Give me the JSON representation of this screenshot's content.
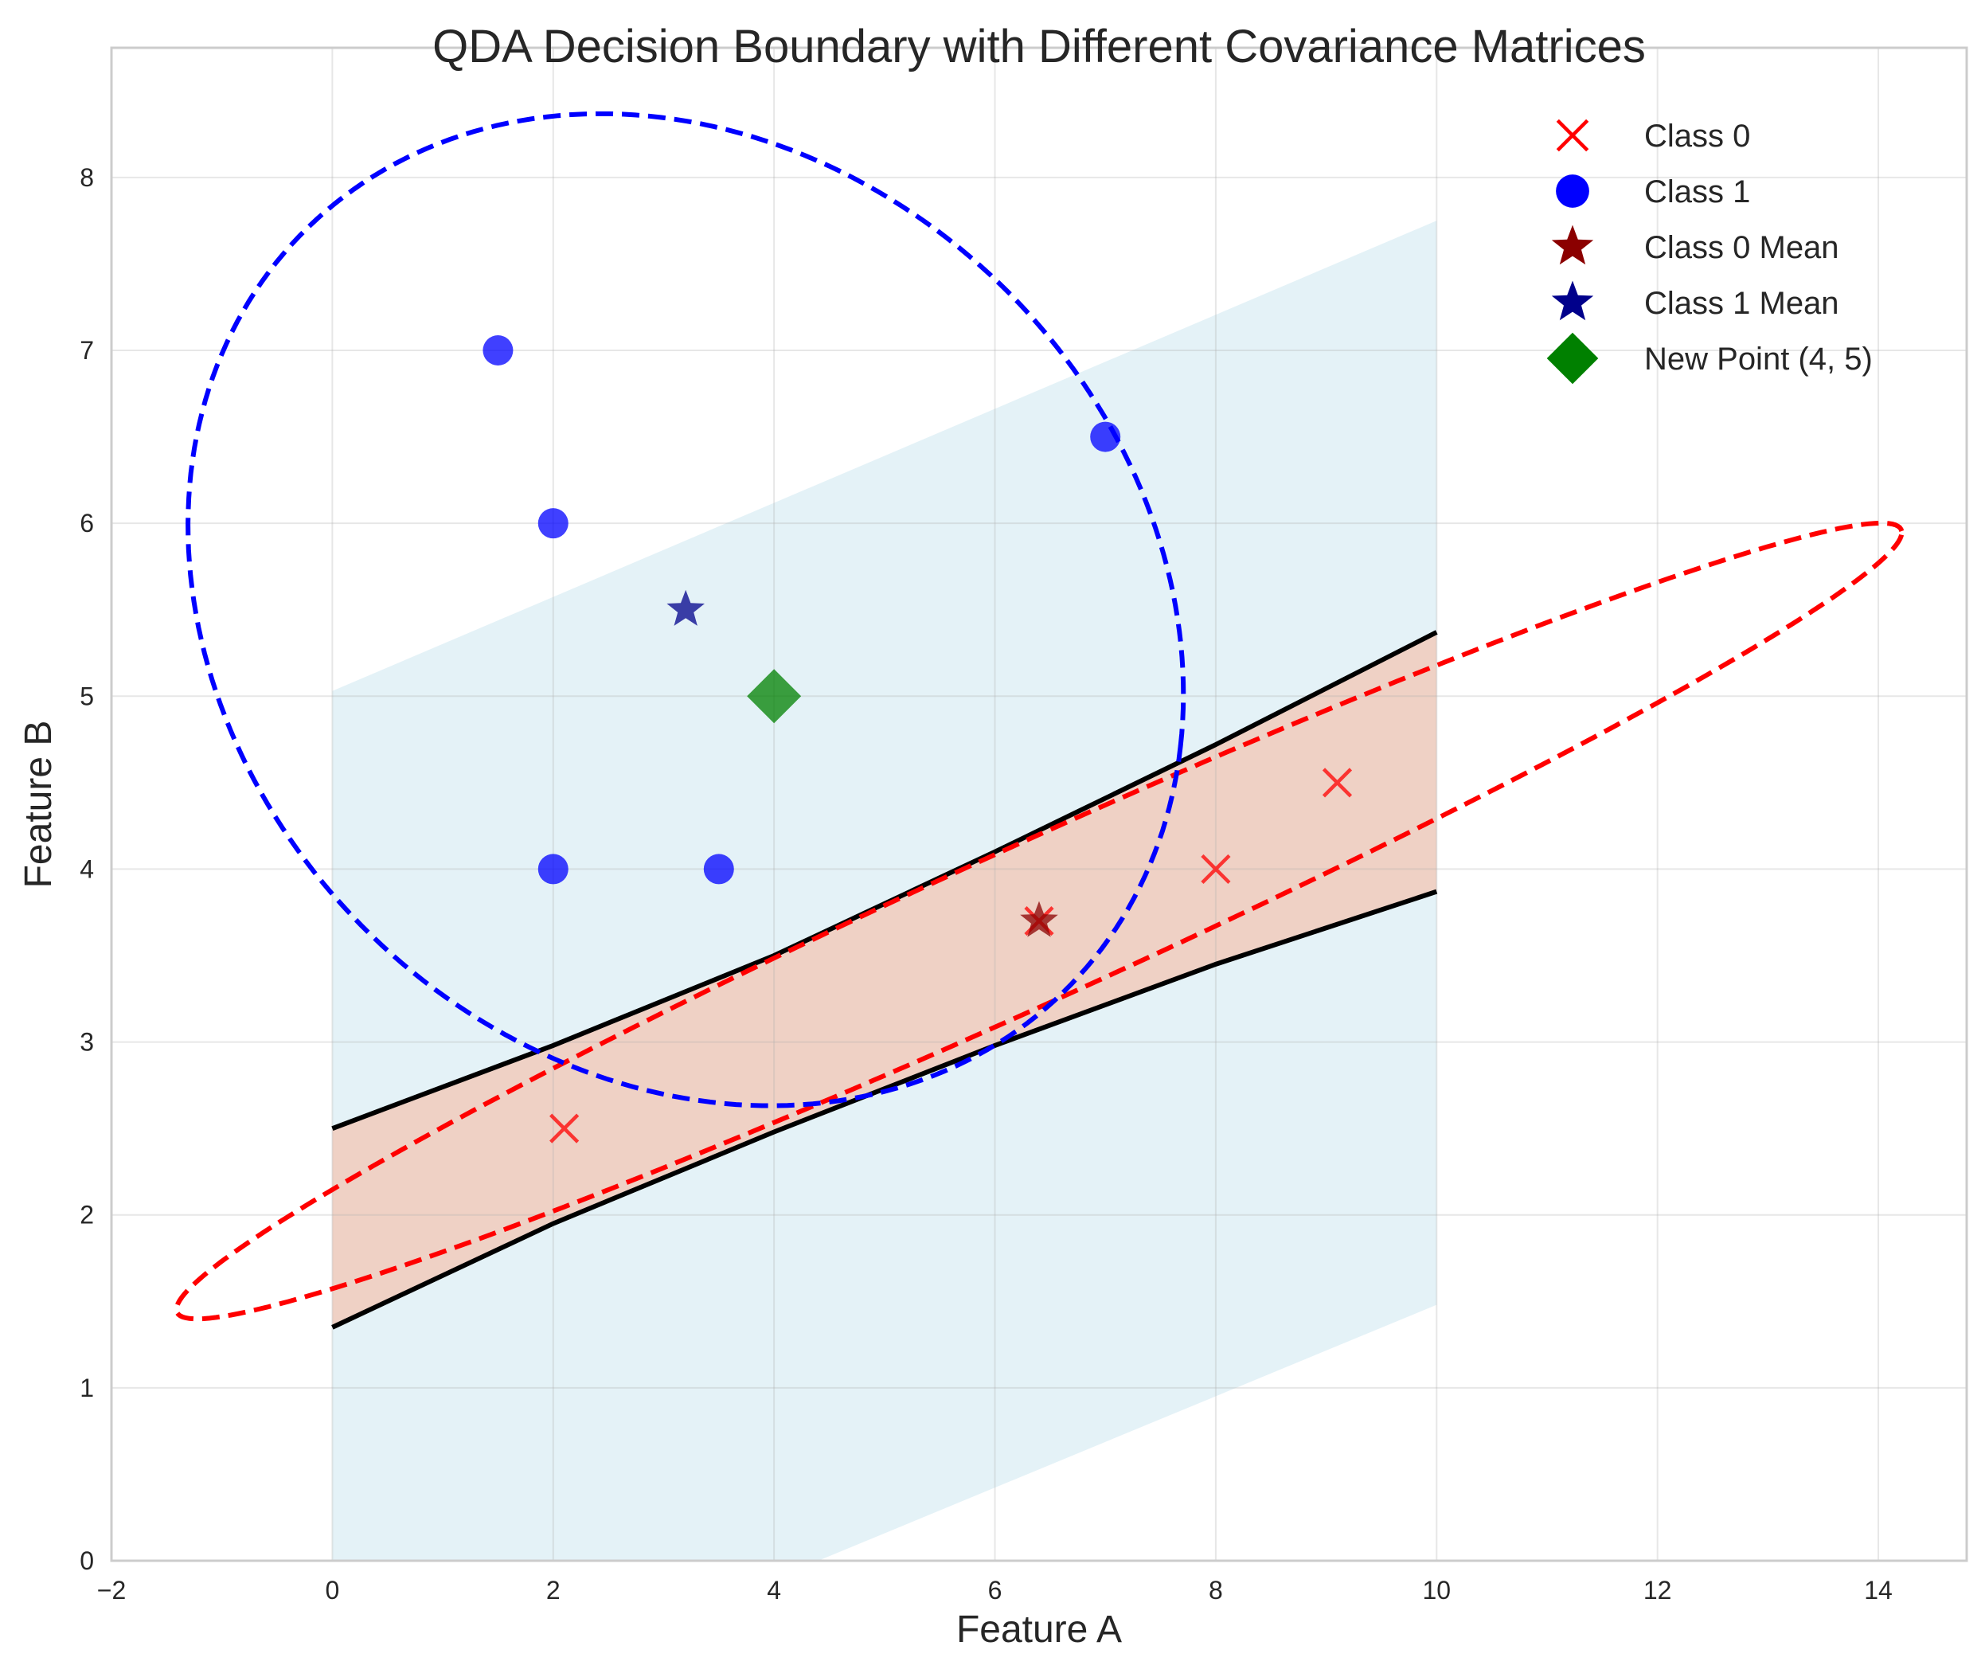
{
  "chart_data": {
    "type": "scatter",
    "title": "QDA Decision Boundary with Different Covariance Matrices",
    "xlabel": "Feature A",
    "ylabel": "Feature B",
    "xlim": [
      -2,
      14.8
    ],
    "ylim": [
      0,
      8.75
    ],
    "xticks": [
      -2,
      0,
      2,
      4,
      6,
      8,
      10,
      12,
      14
    ],
    "yticks": [
      0,
      1,
      2,
      3,
      4,
      5,
      6,
      7,
      8
    ],
    "xtick_labels": [
      "−2",
      "0",
      "2",
      "4",
      "6",
      "8",
      "10",
      "12",
      "14"
    ],
    "ytick_labels": [
      "0",
      "1",
      "2",
      "3",
      "4",
      "5",
      "6",
      "7",
      "8"
    ],
    "grid": true,
    "legend_position": "top-right",
    "series": [
      {
        "name": "Class 0",
        "marker": "x",
        "color": "#ff0000",
        "points": [
          [
            2.1,
            2.5
          ],
          [
            6.4,
            3.7
          ],
          [
            8,
            4.0
          ],
          [
            9.1,
            4.5
          ]
        ]
      },
      {
        "name": "Class 1",
        "marker": "circle",
        "color": "#0000ff",
        "points": [
          [
            1.5,
            7.0
          ],
          [
            2,
            6.0
          ],
          [
            2,
            4.0
          ],
          [
            3.5,
            4.0
          ],
          [
            7,
            6.5
          ]
        ]
      },
      {
        "name": "Class 0 Mean",
        "marker": "star",
        "color": "#8b0000",
        "points": [
          [
            6.4,
            3.7
          ]
        ]
      },
      {
        "name": "Class 1 Mean",
        "marker": "star",
        "color": "#00008b",
        "points": [
          [
            3.2,
            5.5
          ]
        ]
      },
      {
        "name": "New Point (4, 5)",
        "marker": "diamond",
        "color": "#008000",
        "points": [
          [
            4,
            5
          ]
        ]
      }
    ],
    "decision_regions": [
      {
        "class": "Class 1",
        "color": "#add8e6",
        "x_range": [
          0,
          10
        ],
        "lower": [
          [
            0,
            0
          ],
          [
            4.4,
            0
          ],
          [
            10,
            1.48
          ]
        ],
        "upper": [
          [
            0,
            5.03
          ],
          [
            10,
            7.75
          ]
        ]
      },
      {
        "class": "Class 0",
        "color": "#ffa07a",
        "x_range": [
          0,
          10
        ],
        "lower": [
          [
            0,
            1.35
          ],
          [
            2,
            1.95
          ],
          [
            4,
            2.48
          ],
          [
            6,
            2.98
          ],
          [
            8,
            3.45
          ],
          [
            10,
            3.87
          ]
        ],
        "upper": [
          [
            0,
            2.5
          ],
          [
            2,
            2.98
          ],
          [
            4,
            3.5
          ],
          [
            6,
            4.1
          ],
          [
            8,
            4.72
          ],
          [
            10,
            5.37
          ]
        ]
      }
    ],
    "covariance_ellipses": [
      {
        "class": "Class 0",
        "color": "#ff0000",
        "center": [
          6.4,
          3.7
        ],
        "semi_axes": [
          8.13,
          0.48
        ],
        "angle_deg": 16.1
      },
      {
        "class": "Class 1",
        "color": "#0000ff",
        "center": [
          3.2,
          5.5
        ],
        "semi_axes": [
          4.55,
          2.8
        ],
        "angle_deg": -10
      }
    ]
  }
}
